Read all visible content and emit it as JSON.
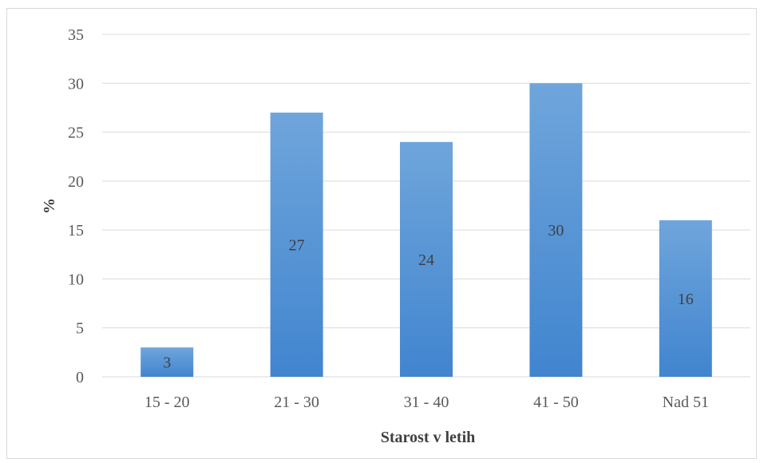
{
  "chart_data": {
    "type": "bar",
    "categories": [
      "15 - 20",
      "21 - 30",
      "31 - 40",
      "41 - 50",
      "Nad 51"
    ],
    "values": [
      3,
      27,
      24,
      30,
      16
    ],
    "data_labels": [
      "3",
      "27",
      "24",
      "30",
      "16"
    ],
    "title": "",
    "xlabel": "Starost v letih",
    "ylabel": "%",
    "ylim": [
      0,
      35
    ],
    "yticks": [
      "0",
      "5",
      "10",
      "15",
      "20",
      "25",
      "30",
      "35"
    ],
    "grid": true,
    "legend": "none",
    "colors": {
      "bar_top": "#6fa5db",
      "bar_bottom": "#4185cf",
      "grid": "#d9d9d9"
    }
  }
}
